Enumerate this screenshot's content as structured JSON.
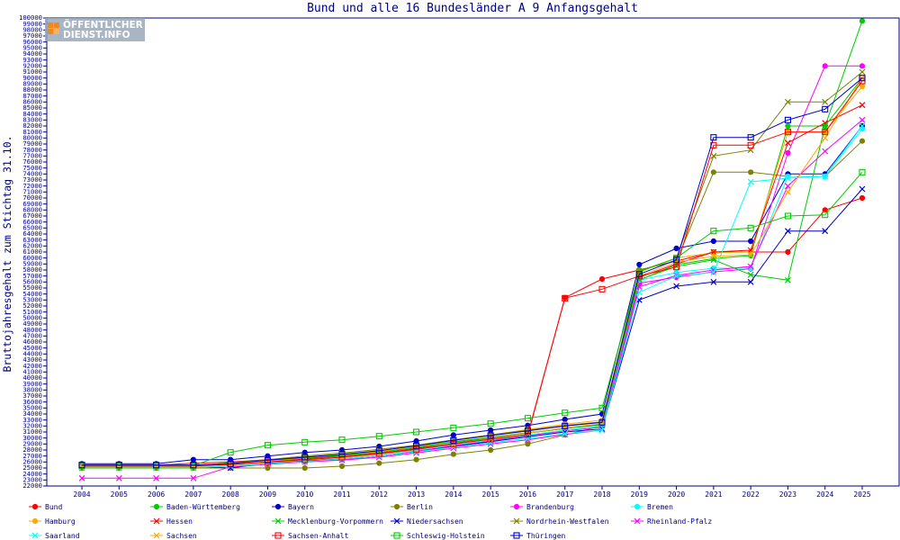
{
  "logo": {
    "line1": "ÖFFENTLICHER",
    "line2": "DIENST.INFO"
  },
  "chart_data": {
    "type": "line",
    "title": "Bund und alle 16 Bundesländer A 9 Anfangsgehalt",
    "xlabel": "",
    "ylabel": "Bruttojahresgehalt zum Stichtag 31.10.",
    "categories": [
      "2004",
      "2005",
      "2006",
      "2007",
      "2008",
      "2009",
      "2010",
      "2011",
      "2012",
      "2013",
      "2014",
      "2015",
      "2016",
      "2017",
      "2018",
      "2019",
      "2020",
      "2021",
      "2022",
      "2023",
      "2024",
      "2025"
    ],
    "ylim": [
      22000,
      100000
    ],
    "ytick_step": 1000,
    "legend_position": "bottom",
    "series": [
      {
        "name": "Bund",
        "color": "#ff0000",
        "marker": "dot",
        "values": [
          25500,
          25500,
          25500,
          25800,
          26000,
          26400,
          26800,
          27200,
          27800,
          28300,
          29000,
          29700,
          30400,
          53400,
          56500,
          58000,
          59500,
          61000,
          61000,
          61000,
          68000,
          70000
        ]
      },
      {
        "name": "Baden-Württemberg",
        "color": "#00cc00",
        "marker": "dot",
        "values": [
          25300,
          25300,
          25300,
          25300,
          25900,
          26300,
          26700,
          27200,
          27700,
          28500,
          29400,
          30100,
          30900,
          31600,
          32300,
          56300,
          58900,
          59900,
          60400,
          82000,
          82000,
          99500
        ]
      },
      {
        "name": "Bayern",
        "color": "#0000cc",
        "marker": "dot",
        "values": [
          25700,
          25700,
          25700,
          26400,
          26400,
          27000,
          27600,
          28000,
          28600,
          29500,
          30500,
          31300,
          32100,
          33100,
          34000,
          58900,
          61600,
          62800,
          62800,
          74000,
          74000,
          82000
        ]
      },
      {
        "name": "Berlin",
        "color": "#808000",
        "marker": "dot",
        "values": [
          25000,
          25000,
          25000,
          25000,
          25000,
          25000,
          25000,
          25300,
          25800,
          26400,
          27300,
          28000,
          29000,
          30500,
          32000,
          58000,
          59500,
          74300,
          74300,
          73600,
          73600,
          79500
        ]
      },
      {
        "name": "Brandenburg",
        "color": "#ff00ff",
        "marker": "dot",
        "values": [
          25200,
          25200,
          25200,
          25200,
          25300,
          25700,
          26000,
          26400,
          27000,
          27800,
          28700,
          29500,
          30400,
          31200,
          31800,
          55800,
          56800,
          57700,
          58200,
          77500,
          92000,
          92000
        ]
      },
      {
        "name": "Bremen",
        "color": "#00ffff",
        "marker": "dot",
        "values": [
          25300,
          25300,
          25300,
          25300,
          25500,
          25900,
          26300,
          26700,
          27200,
          28000,
          28900,
          29700,
          30500,
          31300,
          32000,
          56300,
          57600,
          58300,
          58300,
          73600,
          73600,
          81500
        ]
      },
      {
        "name": "Hamburg",
        "color": "#ffaa00",
        "marker": "dot",
        "values": [
          25500,
          25500,
          25500,
          25500,
          25800,
          26200,
          26600,
          27100,
          27700,
          28600,
          29600,
          30500,
          31400,
          32300,
          33000,
          57700,
          60000,
          60900,
          61000,
          81000,
          81000,
          88600
        ]
      },
      {
        "name": "Hessen",
        "color": "#ff0000",
        "marker": "x",
        "values": [
          25300,
          25300,
          25300,
          25300,
          25500,
          26000,
          26500,
          27000,
          27500,
          28200,
          29100,
          30000,
          30800,
          31600,
          32300,
          56800,
          59000,
          61000,
          61300,
          79200,
          82500,
          85500
        ]
      },
      {
        "name": "Mecklenburg-Vorpommern",
        "color": "#00cc00",
        "marker": "x",
        "values": [
          25000,
          25000,
          25000,
          25000,
          25800,
          26300,
          26700,
          27100,
          27600,
          28400,
          29300,
          30000,
          30800,
          31600,
          32200,
          56400,
          58600,
          59700,
          57200,
          56300,
          82000,
          90000
        ]
      },
      {
        "name": "Niedersachsen",
        "color": "#0000cc",
        "marker": "x",
        "values": [
          25300,
          25300,
          25300,
          25300,
          25000,
          25800,
          26200,
          26500,
          27000,
          27700,
          28600,
          29400,
          30200,
          31000,
          31500,
          53000,
          55300,
          56000,
          56000,
          64500,
          64500,
          71500
        ]
      },
      {
        "name": "Nordrhein-Westfalen",
        "color": "#808000",
        "marker": "x",
        "values": [
          25400,
          25400,
          25400,
          25400,
          25800,
          26400,
          27000,
          27500,
          28100,
          28800,
          29700,
          30500,
          31300,
          32100,
          32700,
          57800,
          60000,
          77000,
          78000,
          86000,
          86000,
          91000
        ]
      },
      {
        "name": "Rheinland-Pfalz",
        "color": "#ff00ff",
        "marker": "x",
        "values": [
          23300,
          23300,
          23300,
          23300,
          25200,
          25600,
          26000,
          26300,
          26800,
          27500,
          28300,
          29000,
          29700,
          30600,
          31300,
          55200,
          57100,
          58000,
          58600,
          72000,
          77800,
          83000
        ]
      },
      {
        "name": "Saarland",
        "color": "#00ffff",
        "marker": "x",
        "values": [
          25100,
          25100,
          25100,
          25100,
          25300,
          25700,
          26100,
          26500,
          27000,
          27700,
          28500,
          29200,
          29900,
          30700,
          31300,
          54300,
          57000,
          57600,
          72700,
          73300,
          73600,
          82000
        ]
      },
      {
        "name": "Sachsen",
        "color": "#ffaa00",
        "marker": "x",
        "values": [
          25200,
          25200,
          25200,
          25200,
          25500,
          25900,
          26300,
          26700,
          27300,
          28100,
          29000,
          29900,
          30800,
          31700,
          32400,
          57000,
          59300,
          60300,
          60500,
          71000,
          80000,
          90000
        ]
      },
      {
        "name": "Sachsen-Anhalt",
        "color": "#ff0000",
        "marker": "square",
        "values": [
          25400,
          25400,
          25400,
          25400,
          25600,
          26000,
          26400,
          26800,
          27400,
          28100,
          29000,
          29800,
          30600,
          53300,
          54800,
          57000,
          58500,
          78800,
          78800,
          81000,
          81000,
          89500
        ]
      },
      {
        "name": "Schleswig-Holstein",
        "color": "#00cc00",
        "marker": "square",
        "values": [
          25400,
          25400,
          25400,
          25400,
          27600,
          28800,
          29300,
          29700,
          30300,
          31000,
          31700,
          32400,
          33300,
          34200,
          35000,
          57700,
          60000,
          64500,
          65000,
          67000,
          67200,
          74300
        ]
      },
      {
        "name": "Thüringen",
        "color": "#0000cc",
        "marker": "square",
        "values": [
          25500,
          25500,
          25500,
          25500,
          25700,
          26300,
          26800,
          27300,
          27900,
          28700,
          29600,
          30400,
          31200,
          32000,
          32600,
          57300,
          59700,
          80100,
          80100,
          83000,
          84800,
          90000
        ]
      }
    ]
  }
}
